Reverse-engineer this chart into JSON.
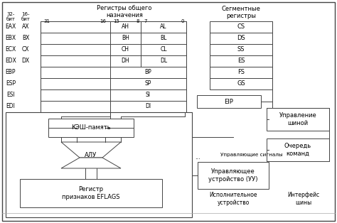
{
  "bg_color": "#ffffff",
  "registers_general_header": "Регистры общего\nназначения",
  "segment_header": "Сегментные\nрегистры",
  "gp_rows": [
    {
      "r32": "EAX",
      "r16": "AX",
      "rh": "AH",
      "rl": "AL",
      "wide": false
    },
    {
      "r32": "EBX",
      "r16": "BX",
      "rh": "BH",
      "rl": "BL",
      "wide": false
    },
    {
      "r32": "ECX",
      "r16": "CX",
      "rh": "CH",
      "rl": "CL",
      "wide": false
    },
    {
      "r32": "EDX",
      "r16": "DX",
      "rh": "DH",
      "rl": "DL",
      "wide": false
    },
    {
      "r32": "EBP",
      "r16": "",
      "rh": "BP",
      "rl": "",
      "wide": true
    },
    {
      "r32": "ESP",
      "r16": "",
      "rh": "SP",
      "rl": "",
      "wide": true
    },
    {
      "r32": "ESI",
      "r16": "",
      "rh": "SI",
      "rl": "",
      "wide": true
    },
    {
      "r32": "EDI",
      "r16": "",
      "rh": "DI",
      "rl": "",
      "wide": true
    }
  ],
  "seg_regs": [
    "CS",
    "DS",
    "SS",
    "ES",
    "FS",
    "GS"
  ],
  "eip_label": "EIP",
  "cache_label": "КЭШ-память",
  "alu_label": "АЛУ",
  "flags_label": "Регистр\nпризнаков EFLAGS",
  "ctrl_signals_label": "Управляющие сигналы",
  "ctrl_unit_label": "Управляющее\nустройство (УУ)",
  "exec_unit_label": "Исполнительное\nустройство",
  "bus_ctrl_label": "Управление\nшиной",
  "cmd_queue_label": "Очередь\nкоманд",
  "bus_iface_label": "Интерфейс\nшины"
}
